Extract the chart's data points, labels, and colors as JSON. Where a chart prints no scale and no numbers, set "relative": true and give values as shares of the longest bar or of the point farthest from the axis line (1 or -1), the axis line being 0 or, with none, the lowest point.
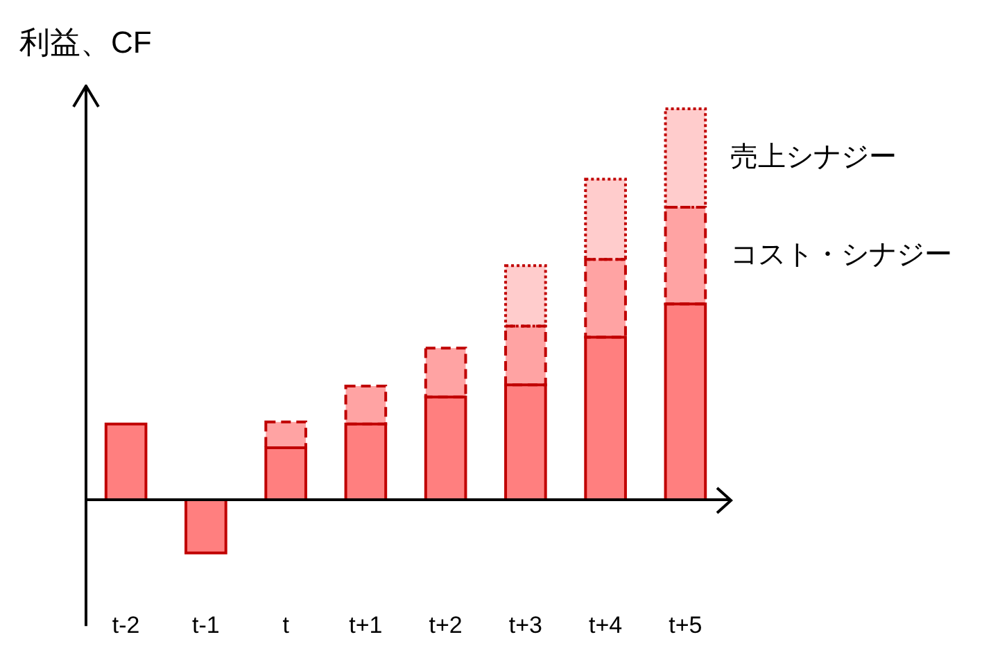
{
  "chart_data": {
    "type": "bar",
    "ylabel": "利益、CF",
    "relative": true,
    "stacked": true,
    "legend": false,
    "grid": false,
    "categories": [
      "t-2",
      "t-1",
      "t",
      "t+1",
      "t+2",
      "t+3",
      "t+4",
      "t+5"
    ],
    "series": [
      {
        "color": "#ff7f7f",
        "line_style": "solid",
        "values": [
          0.194,
          -0.136,
          0.133,
          0.194,
          0.263,
          0.294,
          0.416,
          0.501
        ]
      },
      {
        "name": "コスト・シナジー",
        "color": "#ffa3a3",
        "line_style": "dashed",
        "values": [
          null,
          null,
          0.066,
          0.097,
          0.125,
          0.15,
          0.199,
          0.247
        ]
      },
      {
        "name": "売上シナジー",
        "color": "#ffcccc",
        "line_style": "dotted",
        "values": [
          null,
          null,
          null,
          null,
          null,
          0.155,
          0.205,
          0.252
        ]
      }
    ]
  }
}
